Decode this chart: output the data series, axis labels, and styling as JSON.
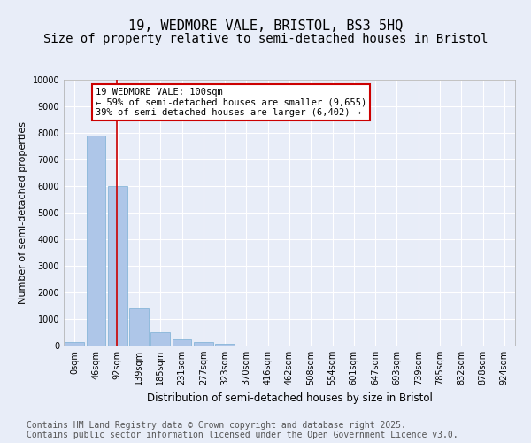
{
  "title_line1": "19, WEDMORE VALE, BRISTOL, BS3 5HQ",
  "title_line2": "Size of property relative to semi-detached houses in Bristol",
  "xlabel": "Distribution of semi-detached houses by size in Bristol",
  "ylabel": "Number of semi-detached properties",
  "bar_values": [
    150,
    7900,
    6000,
    1400,
    500,
    220,
    130,
    60,
    0,
    0,
    0,
    0,
    0,
    0,
    0,
    0,
    0,
    0,
    0,
    0,
    0
  ],
  "bar_labels": [
    "0sqm",
    "46sqm",
    "92sqm",
    "139sqm",
    "185sqm",
    "231sqm",
    "277sqm",
    "323sqm",
    "370sqm",
    "416sqm",
    "462sqm",
    "508sqm",
    "554sqm",
    "601sqm",
    "647sqm",
    "693sqm",
    "739sqm",
    "785sqm",
    "832sqm",
    "878sqm",
    "924sqm"
  ],
  "bar_color": "#aec6e8",
  "bar_edge_color": "#7aafd4",
  "vline_x": 1.95,
  "vline_color": "#cc0000",
  "ylim": [
    0,
    10000
  ],
  "yticks": [
    0,
    1000,
    2000,
    3000,
    4000,
    5000,
    6000,
    7000,
    8000,
    9000,
    10000
  ],
  "annotation_title": "19 WEDMORE VALE: 100sqm",
  "annotation_line1": "← 59% of semi-detached houses are smaller (9,655)",
  "annotation_line2": "39% of semi-detached houses are larger (6,402) →",
  "annotation_box_facecolor": "#ffffff",
  "annotation_box_edgecolor": "#cc0000",
  "footer_line1": "Contains HM Land Registry data © Crown copyright and database right 2025.",
  "footer_line2": "Contains public sector information licensed under the Open Government Licence v3.0.",
  "bg_color": "#e8edf8",
  "plot_bg_color": "#e8edf8",
  "grid_color": "#ffffff",
  "title_fontsize": 11,
  "subtitle_fontsize": 10,
  "tick_fontsize": 7,
  "footer_fontsize": 7
}
